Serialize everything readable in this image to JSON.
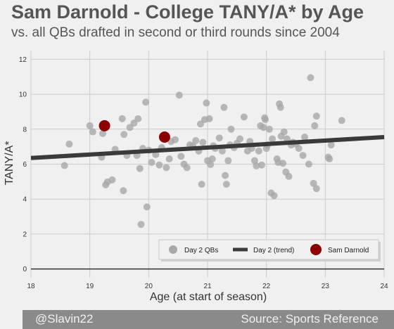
{
  "header": {
    "title": "Sam Darnold - College TANY/A* by Age",
    "subtitle": "vs. all QBs drafted in second or third rounds since 2004"
  },
  "footer": {
    "handle": "@Slavin22",
    "source": "Source: Sports Reference"
  },
  "chart_data": {
    "type": "scatter",
    "xlabel": "Age (at start of season)",
    "ylabel": "TANY/A*",
    "xlim": [
      18,
      24
    ],
    "ylim": [
      -0.5,
      12.5
    ],
    "xticks": [
      "18",
      "19",
      "20",
      "21",
      "22",
      "23",
      "24"
    ],
    "yticks": [
      "0",
      "2",
      "4",
      "6",
      "8",
      "10",
      "12"
    ],
    "grid": true,
    "legend_position": "bottom-right",
    "legend": [
      "Day 2 QBs",
      "Day 2 (trend)",
      "Sam Darnold"
    ],
    "colors": {
      "day2": "#a8a8a8",
      "trend": "#3a3a3a",
      "darnold": "#8b0000",
      "baseline": "#333333"
    },
    "trend": {
      "x": [
        18,
        24
      ],
      "y": [
        6.35,
        7.55
      ]
    },
    "series": [
      {
        "name": "Day 2 QBs",
        "points": [
          [
            18.57,
            5.92
          ],
          [
            18.65,
            7.15
          ],
          [
            19.0,
            8.2
          ],
          [
            19.05,
            7.85
          ],
          [
            19.2,
            6.4
          ],
          [
            19.22,
            7.75
          ],
          [
            19.27,
            4.82
          ],
          [
            19.3,
            4.98
          ],
          [
            19.38,
            5.1
          ],
          [
            19.43,
            6.85
          ],
          [
            19.55,
            8.6
          ],
          [
            19.57,
            4.48
          ],
          [
            19.58,
            7.7
          ],
          [
            19.63,
            6.5
          ],
          [
            19.68,
            8.1
          ],
          [
            19.75,
            8.35
          ],
          [
            19.8,
            6.5
          ],
          [
            19.82,
            8.6
          ],
          [
            19.85,
            5.75
          ],
          [
            19.87,
            2.55
          ],
          [
            19.9,
            6.9
          ],
          [
            19.95,
            9.55
          ],
          [
            19.97,
            3.55
          ],
          [
            20.0,
            6.8
          ],
          [
            20.05,
            6.1
          ],
          [
            20.12,
            6.55
          ],
          [
            20.18,
            5.95
          ],
          [
            20.22,
            6.95
          ],
          [
            20.3,
            5.8
          ],
          [
            20.35,
            6.3
          ],
          [
            20.38,
            7.3
          ],
          [
            20.45,
            7.4
          ],
          [
            20.52,
            9.95
          ],
          [
            20.55,
            6.45
          ],
          [
            20.6,
            6.0
          ],
          [
            20.65,
            5.8
          ],
          [
            20.7,
            7.1
          ],
          [
            20.75,
            7.05
          ],
          [
            20.8,
            7.35
          ],
          [
            20.85,
            6.75
          ],
          [
            20.88,
            8.3
          ],
          [
            20.9,
            4.85
          ],
          [
            20.92,
            7.25
          ],
          [
            20.95,
            8.55
          ],
          [
            20.98,
            9.5
          ],
          [
            21.0,
            6.2
          ],
          [
            21.03,
            8.6
          ],
          [
            21.05,
            5.98
          ],
          [
            21.08,
            6.3
          ],
          [
            21.1,
            7.05
          ],
          [
            21.13,
            6.9
          ],
          [
            21.2,
            7.5
          ],
          [
            21.25,
            6.75
          ],
          [
            21.28,
            9.25
          ],
          [
            21.3,
            5.35
          ],
          [
            21.32,
            4.85
          ],
          [
            21.35,
            6.2
          ],
          [
            21.38,
            7.1
          ],
          [
            21.4,
            8.0
          ],
          [
            21.45,
            6.95
          ],
          [
            21.5,
            7.2
          ],
          [
            21.55,
            7.45
          ],
          [
            21.62,
            8.7
          ],
          [
            21.68,
            6.75
          ],
          [
            21.72,
            7.3
          ],
          [
            21.75,
            6.9
          ],
          [
            21.8,
            6.2
          ],
          [
            21.83,
            5.9
          ],
          [
            21.87,
            6.75
          ],
          [
            21.9,
            8.2
          ],
          [
            21.92,
            5.95
          ],
          [
            21.95,
            8.1
          ],
          [
            21.98,
            8.55
          ],
          [
            22.0,
            6.9
          ],
          [
            22.02,
            7.1
          ],
          [
            22.05,
            8.0
          ],
          [
            22.08,
            4.35
          ],
          [
            22.1,
            7.45
          ],
          [
            22.13,
            4.2
          ],
          [
            22.18,
            6.3
          ],
          [
            22.2,
            6.1
          ],
          [
            22.22,
            9.45
          ],
          [
            22.25,
            7.6
          ],
          [
            22.28,
            6.05
          ],
          [
            22.3,
            7.85
          ],
          [
            22.33,
            5.55
          ],
          [
            22.35,
            7.45
          ],
          [
            22.38,
            5.3
          ],
          [
            22.42,
            7.1
          ],
          [
            22.45,
            7.25
          ],
          [
            22.5,
            7.15
          ],
          [
            22.55,
            6.9
          ],
          [
            22.62,
            6.5
          ],
          [
            22.65,
            7.55
          ],
          [
            22.72,
            6.0
          ],
          [
            22.75,
            10.95
          ],
          [
            22.8,
            4.9
          ],
          [
            22.82,
            8.2
          ],
          [
            22.85,
            8.75
          ],
          [
            22.85,
            4.6
          ],
          [
            23.05,
            6.4
          ],
          [
            23.07,
            6.3
          ],
          [
            23.1,
            7.1
          ],
          [
            23.28,
            8.5
          ],
          [
            22.24,
            9.25
          ],
          [
            21.97,
            8.65
          ]
        ]
      },
      {
        "name": "Sam Darnold",
        "points": [
          [
            19.25,
            8.2
          ],
          [
            20.27,
            7.55
          ]
        ]
      }
    ]
  }
}
